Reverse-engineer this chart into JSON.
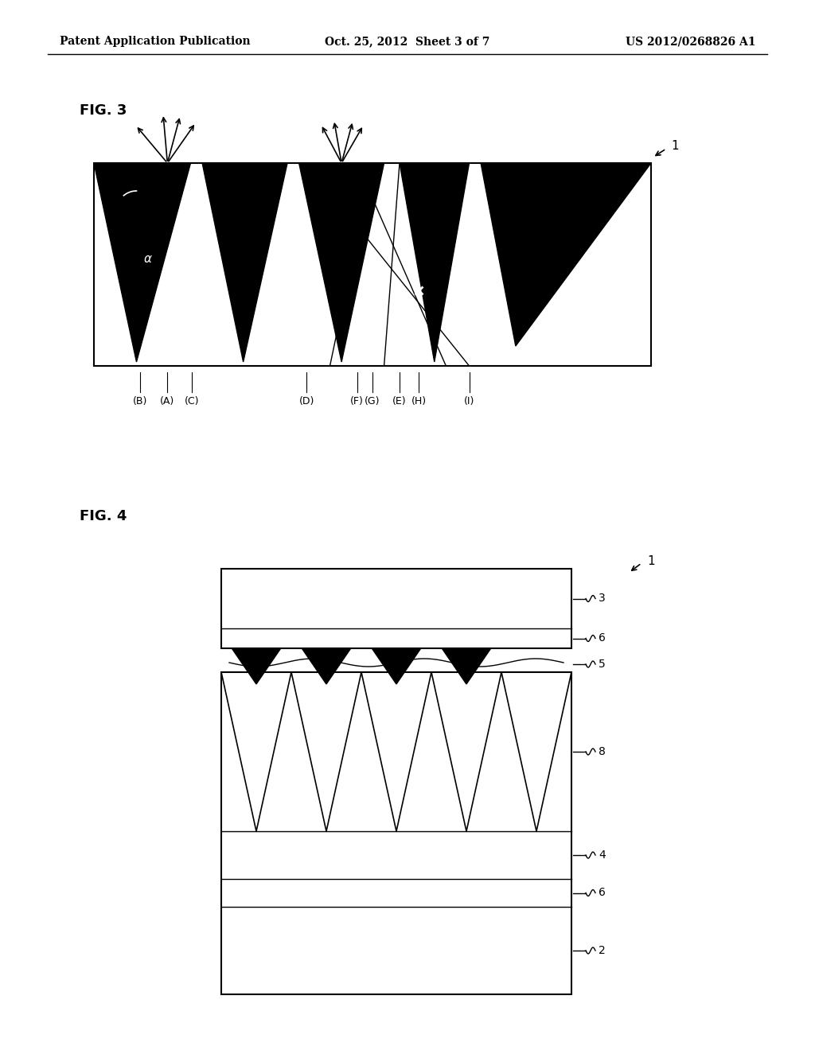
{
  "bg_color": "#ffffff",
  "header_left": "Patent Application Publication",
  "header_center": "Oct. 25, 2012  Sheet 3 of 7",
  "header_right": "US 2012/0268826 A1",
  "fig3_label": "FIG. 3",
  "fig4_label": "FIG. 4"
}
